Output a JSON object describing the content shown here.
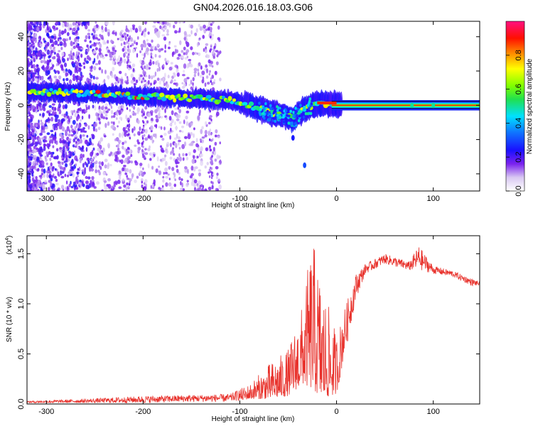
{
  "title": "GN04.2026.016.18.03.G06",
  "chart_data": [
    {
      "type": "heatmap",
      "xlabel": "Height of straight line (km)",
      "ylabel": "Frequency (Hz)",
      "xlim": [
        -320,
        148
      ],
      "ylim": [
        -50,
        49
      ],
      "xticks": [
        -300,
        -200,
        -100,
        0,
        100
      ],
      "yticks": [
        -40,
        -20,
        0,
        20,
        40
      ],
      "colorbar": {
        "label": "Normalized spectral amplitude",
        "range": [
          0,
          1
        ],
        "ticks": [
          "0.0",
          "0.2",
          "0.4",
          "0.6",
          "0.8"
        ],
        "tick_values": [
          0,
          0.2,
          0.4,
          0.6,
          0.8
        ]
      },
      "ridge": {
        "points": [
          [
            -320,
            8
          ],
          [
            -250,
            7
          ],
          [
            -200,
            5
          ],
          [
            -150,
            4
          ],
          [
            -110,
            3
          ],
          [
            -90,
            0
          ],
          [
            -70,
            -4
          ],
          [
            -55,
            -6
          ],
          [
            -45,
            -8
          ],
          [
            -35,
            -3
          ],
          [
            -20,
            1
          ],
          [
            0,
            0.5
          ],
          [
            148,
            0
          ]
        ],
        "description_note": "dominant frequency ridge; constant ~0 Hz after 0 km"
      },
      "features": [
        {
          "x": -33,
          "y": -35,
          "amplitude": 0.3
        },
        {
          "x": -45,
          "y": -19,
          "amplitude": 0.25
        },
        {
          "x": 78,
          "y": 0,
          "amplitude": 0.5
        },
        {
          "x": 100,
          "y": 0,
          "amplitude": 0.5
        }
      ]
    },
    {
      "type": "line",
      "xlabel": "Height of straight line (km)",
      "ylabel": "SNR (10 * v/v)",
      "yscale_label": "(x10",
      "yscale_exp": "4",
      "xlim": [
        -320,
        148
      ],
      "ylim": [
        0,
        1.68
      ],
      "xticks": [
        -300,
        -200,
        -100,
        0,
        100
      ],
      "yticks": [
        0.0,
        0.5,
        1.0,
        1.5
      ],
      "ytick_labels": [
        "0.0",
        "0.5",
        "1.0",
        "1.5"
      ],
      "series": [
        {
          "name": "SNR",
          "color": "#e8302a",
          "envelope": [
            [
              -320,
              0.01,
              0.03
            ],
            [
              -260,
              0.01,
              0.05
            ],
            [
              -200,
              0.01,
              0.08
            ],
            [
              -150,
              0.02,
              0.09
            ],
            [
              -110,
              0.02,
              0.1
            ],
            [
              -90,
              0.05,
              0.2
            ],
            [
              -70,
              0.05,
              0.4
            ],
            [
              -50,
              0.08,
              0.55
            ],
            [
              -35,
              0.2,
              1.0
            ],
            [
              -25,
              0.15,
              1.68
            ],
            [
              -15,
              0.05,
              1.2
            ],
            [
              0,
              0.1,
              0.7
            ],
            [
              10,
              0.55,
              1.0
            ],
            [
              20,
              1.05,
              1.3
            ],
            [
              30,
              1.3,
              1.4
            ],
            [
              50,
              1.4,
              1.5
            ],
            [
              75,
              1.33,
              1.42
            ],
            [
              85,
              1.34,
              1.58
            ],
            [
              100,
              1.3,
              1.38
            ],
            [
              120,
              1.27,
              1.33
            ],
            [
              140,
              1.18,
              1.25
            ],
            [
              148,
              1.18,
              1.22
            ]
          ]
        }
      ]
    }
  ]
}
